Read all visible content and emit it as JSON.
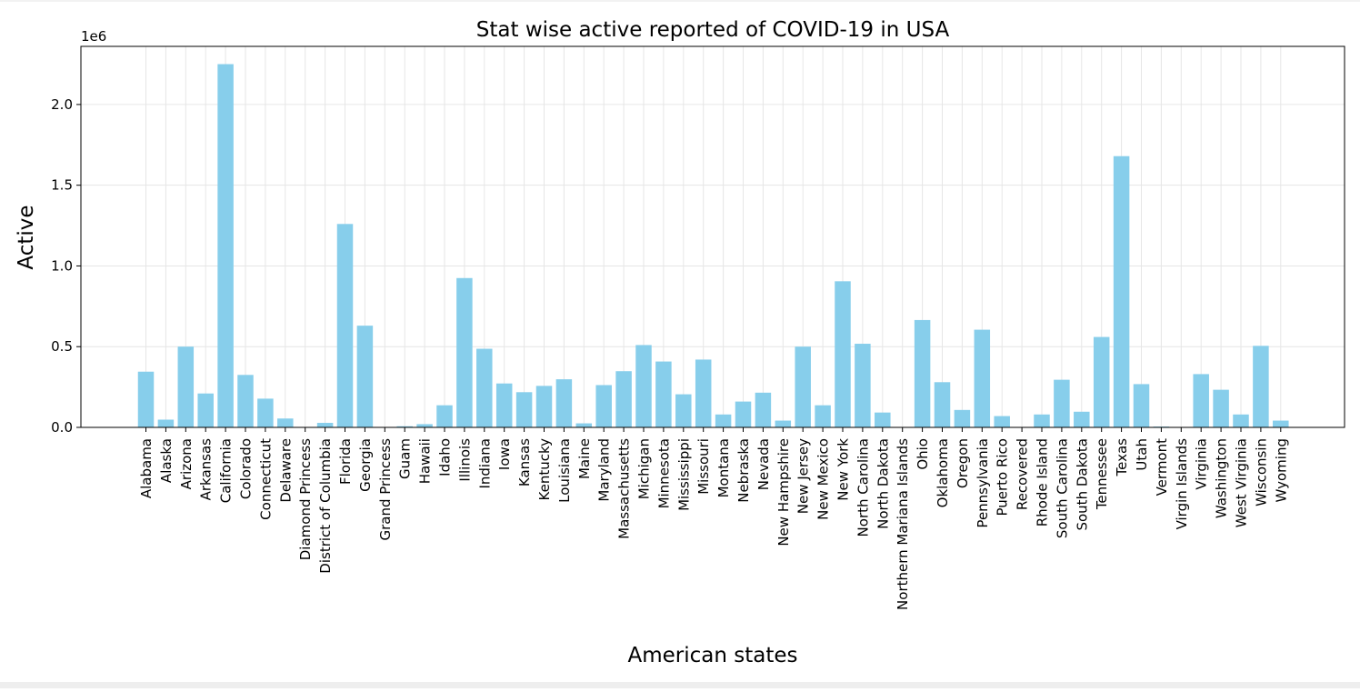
{
  "chart_data": {
    "type": "bar",
    "title": "Stat wise active reported of COVID-19 in USA",
    "xlabel": "American states",
    "ylabel": "Active",
    "offset_label": "1e6",
    "ylim": [
      0,
      2360000
    ],
    "yticks": [
      0,
      500000,
      1000000,
      1500000,
      2000000
    ],
    "ytick_labels": [
      "0.0",
      "0.5",
      "1.0",
      "1.5",
      "2.0"
    ],
    "grid": true,
    "bar_color": "#87ceeb",
    "categories": [
      "Alabama",
      "Alaska",
      "Arizona",
      "Arkansas",
      "California",
      "Colorado",
      "Connecticut",
      "Delaware",
      "Diamond Princess",
      "District of Columbia",
      "Florida",
      "Georgia",
      "Grand Princess",
      "Guam",
      "Hawaii",
      "Idaho",
      "Illinois",
      "Indiana",
      "Iowa",
      "Kansas",
      "Kentucky",
      "Louisiana",
      "Maine",
      "Maryland",
      "Massachusetts",
      "Michigan",
      "Minnesota",
      "Mississippi",
      "Missouri",
      "Montana",
      "Nebraska",
      "Nevada",
      "New Hampshire",
      "New Jersey",
      "New Mexico",
      "New York",
      "North Carolina",
      "North Dakota",
      "Northern Mariana Islands",
      "Ohio",
      "Oklahoma",
      "Oregon",
      "Pennsylvania",
      "Puerto Rico",
      "Recovered",
      "Rhode Island",
      "South Carolina",
      "South Dakota",
      "Tennessee",
      "Texas",
      "Utah",
      "Vermont",
      "Virgin Islands",
      "Virginia",
      "Washington",
      "West Virginia",
      "Wisconsin",
      "Wyoming"
    ],
    "values": [
      345000,
      48000,
      500000,
      210000,
      2250000,
      325000,
      178000,
      55000,
      0,
      28000,
      1260000,
      630000,
      0,
      7000,
      20000,
      137000,
      925000,
      487000,
      272000,
      218000,
      257000,
      298000,
      25000,
      262000,
      348000,
      510000,
      408000,
      205000,
      420000,
      80000,
      160000,
      215000,
      42000,
      500000,
      137000,
      905000,
      518000,
      92000,
      100,
      665000,
      280000,
      108000,
      605000,
      70000,
      0,
      80000,
      295000,
      97000,
      560000,
      1680000,
      268000,
      5000,
      2500,
      330000,
      233000,
      80000,
      505000,
      42000
    ]
  }
}
